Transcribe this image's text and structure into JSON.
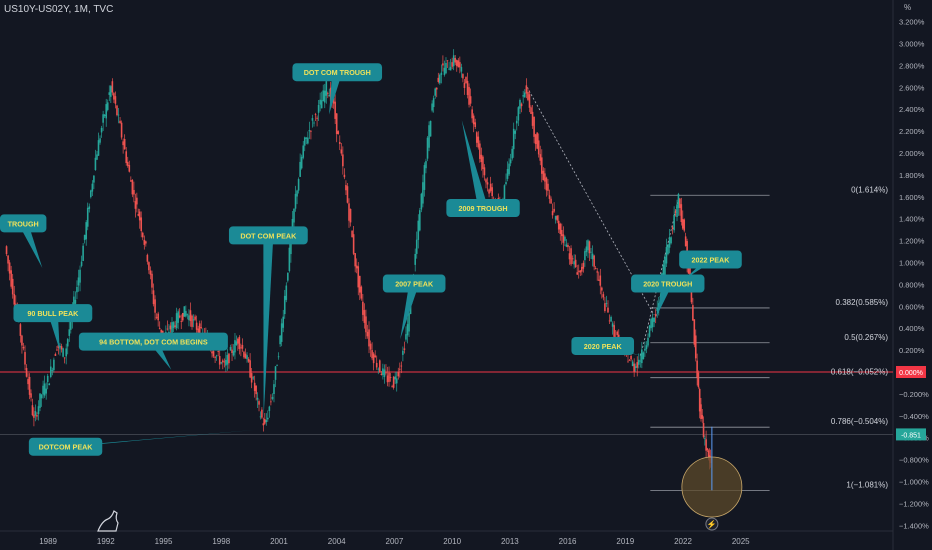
{
  "header": {
    "ticker": "US10Y-US02Y, 1M, TVC",
    "unit": "%"
  },
  "colors": {
    "background": "#131722",
    "up": "#26a69a",
    "down": "#ef5350",
    "annotation_fill": "#1b8a96",
    "annotation_text": "#f0e25a",
    "level_line": "#9598a1",
    "zero_line": "#f23645",
    "axis_text": "#b2b5be",
    "circle_fill": "#5c4a2a",
    "circle_stroke": "#c9a86a"
  },
  "chart_data": {
    "type": "candlestick",
    "title": "",
    "xlabel": "",
    "ylabel": "%",
    "xlim": [
      1986.5,
      2026.5
    ],
    "ylim": [
      -1.3,
      3.3
    ],
    "x_ticks": [
      "1989",
      "1992",
      "1995",
      "1998",
      "2001",
      "2004",
      "2007",
      "2010",
      "2013",
      "2016",
      "2019",
      "2022",
      "2025"
    ],
    "y_ticks": [
      "3.200%",
      "3.000%",
      "2.800%",
      "2.600%",
      "2.400%",
      "2.200%",
      "2.000%",
      "1.800%",
      "1.600%",
      "1.400%",
      "1.200%",
      "1.000%",
      "0.800%",
      "0.600%",
      "0.400%",
      "0.200%",
      "−0.200%",
      "−0.400%",
      "−0.600%",
      "−0.800%",
      "−1.000%",
      "−1.200%",
      "−1.400%"
    ],
    "series_path": [
      [
        1986.8,
        1.15
      ],
      [
        1987.2,
        0.75
      ],
      [
        1987.6,
        0.35
      ],
      [
        1988.0,
        -0.1
      ],
      [
        1988.3,
        -0.45
      ],
      [
        1988.7,
        -0.2
      ],
      [
        1989.1,
        -0.05
      ],
      [
        1989.5,
        0.25
      ],
      [
        1989.9,
        0.15
      ],
      [
        1990.3,
        0.55
      ],
      [
        1990.7,
        0.95
      ],
      [
        1991.1,
        1.45
      ],
      [
        1991.5,
        1.95
      ],
      [
        1991.9,
        2.3
      ],
      [
        1992.3,
        2.6
      ],
      [
        1992.7,
        2.3
      ],
      [
        1993.1,
        1.95
      ],
      [
        1993.5,
        1.6
      ],
      [
        1993.8,
        1.4
      ],
      [
        1994.2,
        1.05
      ],
      [
        1994.6,
        0.55
      ],
      [
        1995.0,
        0.3
      ],
      [
        1995.4,
        0.4
      ],
      [
        1995.8,
        0.5
      ],
      [
        1996.2,
        0.55
      ],
      [
        1996.6,
        0.45
      ],
      [
        1997.0,
        0.35
      ],
      [
        1997.4,
        0.25
      ],
      [
        1997.8,
        0.15
      ],
      [
        1998.2,
        0.05
      ],
      [
        1998.6,
        0.2
      ],
      [
        1998.9,
        0.3
      ],
      [
        1999.3,
        0.15
      ],
      [
        1999.7,
        -0.1
      ],
      [
        2000.0,
        -0.35
      ],
      [
        2000.3,
        -0.5
      ],
      [
        2000.7,
        -0.2
      ],
      [
        2001.1,
        0.3
      ],
      [
        2001.5,
        0.95
      ],
      [
        2001.9,
        1.6
      ],
      [
        2002.3,
        2.05
      ],
      [
        2002.7,
        2.25
      ],
      [
        2003.1,
        2.4
      ],
      [
        2003.5,
        2.6
      ],
      [
        2003.8,
        2.5
      ],
      [
        2004.2,
        2.05
      ],
      [
        2004.6,
        1.55
      ],
      [
        2005.0,
        1.0
      ],
      [
        2005.4,
        0.55
      ],
      [
        2005.8,
        0.2
      ],
      [
        2006.2,
        0.05
      ],
      [
        2006.6,
        -0.05
      ],
      [
        2007.0,
        -0.1
      ],
      [
        2007.4,
        0.1
      ],
      [
        2007.8,
        0.5
      ],
      [
        2008.2,
        1.2
      ],
      [
        2008.6,
        1.85
      ],
      [
        2009.0,
        2.45
      ],
      [
        2009.4,
        2.75
      ],
      [
        2009.8,
        2.8
      ],
      [
        2010.2,
        2.85
      ],
      [
        2010.6,
        2.7
      ],
      [
        2011.0,
        2.45
      ],
      [
        2011.4,
        2.05
      ],
      [
        2011.8,
        1.75
      ],
      [
        2012.2,
        1.55
      ],
      [
        2012.6,
        1.5
      ],
      [
        2013.0,
        1.9
      ],
      [
        2013.4,
        2.35
      ],
      [
        2013.9,
        2.6
      ],
      [
        2014.3,
        2.2
      ],
      [
        2014.7,
        1.85
      ],
      [
        2015.1,
        1.55
      ],
      [
        2015.5,
        1.35
      ],
      [
        2015.9,
        1.2
      ],
      [
        2016.3,
        1.0
      ],
      [
        2016.7,
        0.9
      ],
      [
        2017.1,
        1.15
      ],
      [
        2017.5,
        0.95
      ],
      [
        2017.9,
        0.65
      ],
      [
        2018.3,
        0.45
      ],
      [
        2018.7,
        0.25
      ],
      [
        2019.1,
        0.15
      ],
      [
        2019.5,
        0.05
      ],
      [
        2019.9,
        0.15
      ],
      [
        2020.3,
        0.4
      ],
      [
        2020.7,
        0.55
      ],
      [
        2021.1,
        1.05
      ],
      [
        2021.5,
        1.35
      ],
      [
        2021.8,
        1.6
      ],
      [
        2022.1,
        1.25
      ],
      [
        2022.4,
        0.8
      ],
      [
        2022.7,
        0.1
      ],
      [
        2022.9,
        -0.3
      ],
      [
        2023.1,
        -0.55
      ],
      [
        2023.3,
        -0.75
      ],
      [
        2023.45,
        -0.85
      ]
    ],
    "last_value": "-0.851",
    "zero_label": "0.000%",
    "fib_levels": [
      {
        "label": "0(1.614%)",
        "value": 1.614
      },
      {
        "label": "0.382(0.585%)",
        "value": 0.585
      },
      {
        "label": "0.5(0.267%)",
        "value": 0.267
      },
      {
        "label": "0.618(−0.052%)",
        "value": -0.052
      },
      {
        "label": "0.786(−0.504%)",
        "value": -0.504
      },
      {
        "label": "1(−1.081%)",
        "value": -1.081
      }
    ],
    "annotations": [
      {
        "text": "TROUGH",
        "box_x": 1986.5,
        "box_y": 1.44,
        "tip_x": 1988.7,
        "tip_y": 0.95
      },
      {
        "text": "90 BULL PEAK",
        "box_x": 1987.2,
        "box_y": 0.62,
        "tip_x": 1989.6,
        "tip_y": 0.2
      },
      {
        "text": "94 BOTTOM, DOT COM BEGINS",
        "box_x": 1990.6,
        "box_y": 0.36,
        "tip_x": 1995.4,
        "tip_y": 0.02
      },
      {
        "text": "DOTCOM PEAK",
        "box_x": 1988.0,
        "box_y": -0.6,
        "tip_x": 2000.3,
        "tip_y": -0.52
      },
      {
        "text": "DOT COM PEAK",
        "box_x": 1998.4,
        "box_y": 1.33,
        "tip_x": 2000.2,
        "tip_y": -0.42
      },
      {
        "text": "DOT COM TROUGH",
        "box_x": 2001.7,
        "box_y": 2.82,
        "tip_x": 2003.6,
        "tip_y": 2.35
      },
      {
        "text": "2007 PEAK",
        "box_x": 2006.4,
        "box_y": 0.89,
        "tip_x": 2007.3,
        "tip_y": 0.3
      },
      {
        "text": "2009 TROUGH",
        "box_x": 2009.7,
        "box_y": 1.58,
        "tip_x": 2010.5,
        "tip_y": 2.3
      },
      {
        "text": "2020 PEAK",
        "box_x": 2016.2,
        "box_y": 0.32,
        "tip_x": 2019.8,
        "tip_y": 0.15
      },
      {
        "text": "2020 TROUGH",
        "box_x": 2019.3,
        "box_y": 0.89,
        "tip_x": 2020.6,
        "tip_y": 0.5
      },
      {
        "text": "2022 PEAK",
        "box_x": 2021.8,
        "box_y": 1.11,
        "tip_x": 2022.1,
        "tip_y": 0.85
      }
    ]
  }
}
